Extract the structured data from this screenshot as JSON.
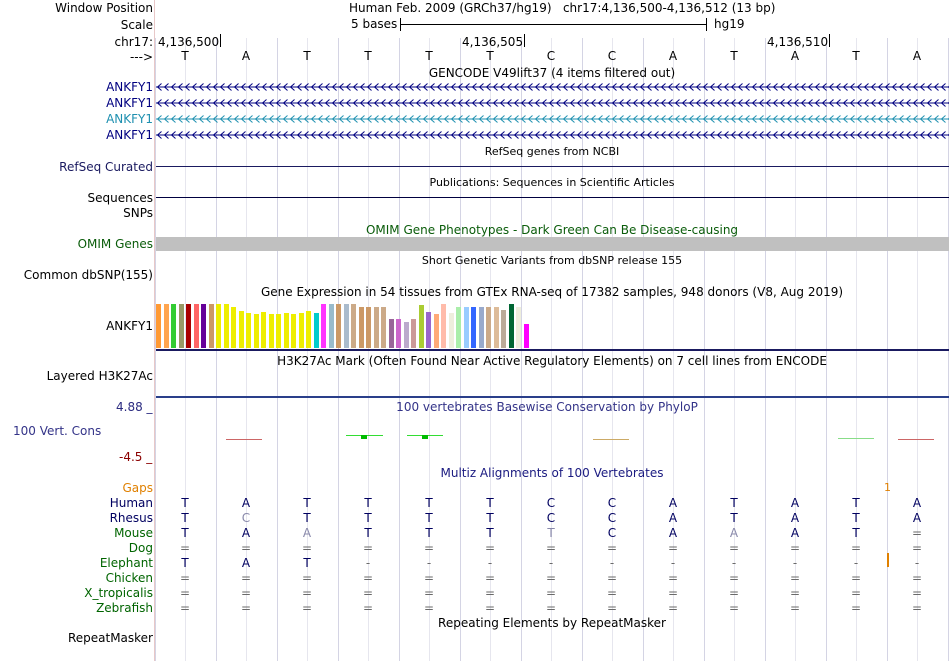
{
  "header": {
    "window_position_label": "Window Position",
    "window_position_value": "Human Feb. 2009 (GRCh37/hg19)   chr17:4,136,500-4,136,512 (13 bp)",
    "scale_label": "Scale",
    "scale_text": "5 bases",
    "scale_assembly": "hg19",
    "chrom_label": "chr17:",
    "positions": [
      {
        "text": "4,136,500",
        "x": 158
      },
      {
        "text": "4,136,505",
        "x": 462
      },
      {
        "text": "4,136,510",
        "x": 767
      }
    ],
    "strand_label": "--->"
  },
  "bases": [
    "T",
    "A",
    "T",
    "T",
    "T",
    "T",
    "C",
    "C",
    "A",
    "T",
    "A",
    "T",
    "A"
  ],
  "tracks": {
    "gencode": {
      "title": "GENCODE V49lift37 (4 items filtered out)",
      "items": [
        {
          "label": "ANKFY1",
          "color": "#000080"
        },
        {
          "label": "ANKFY1",
          "color": "#000080"
        },
        {
          "label": "ANKFY1",
          "color": "#1e90b0"
        },
        {
          "label": "ANKFY1",
          "color": "#000080"
        }
      ]
    },
    "refseq": {
      "title": "RefSeq genes from NCBI",
      "label": "RefSeq Curated"
    },
    "publications": {
      "title": "Publications: Sequences in Scientific Articles",
      "label": "Sequences"
    },
    "snps_label": "SNPs",
    "omim": {
      "title": "OMIM Gene Phenotypes - Dark Green Can Be Disease-causing",
      "label": "OMIM Genes",
      "color": "#0a5c0a"
    },
    "dbsnp": {
      "title": "Short Genetic Variants from dbSNP release 155",
      "label": "Common dbSNP(155)"
    },
    "gtex": {
      "title": "Gene Expression in 54 tissues from GTEx RNA-seq of 17382 samples, 948 donors (V8, Aug 2019)",
      "label": "ANKFY1",
      "bars": [
        {
          "v": 0.92,
          "c": "#ff9933"
        },
        {
          "v": 0.92,
          "c": "#ffa54f"
        },
        {
          "v": 0.92,
          "c": "#33cc33"
        },
        {
          "v": 0.92,
          "c": "#999966"
        },
        {
          "v": 0.92,
          "c": "#aa0000"
        },
        {
          "v": 0.92,
          "c": "#ff6666"
        },
        {
          "v": 0.92,
          "c": "#660099"
        },
        {
          "v": 0.92,
          "c": "#cc9966"
        },
        {
          "v": 0.92,
          "c": "#eeee00"
        },
        {
          "v": 0.92,
          "c": "#eeee00"
        },
        {
          "v": 0.85,
          "c": "#eeee00"
        },
        {
          "v": 0.78,
          "c": "#eeee00"
        },
        {
          "v": 0.72,
          "c": "#eeee00"
        },
        {
          "v": 0.7,
          "c": "#eeee00"
        },
        {
          "v": 0.75,
          "c": "#eeee00"
        },
        {
          "v": 0.7,
          "c": "#eeee00"
        },
        {
          "v": 0.7,
          "c": "#eeee00"
        },
        {
          "v": 0.72,
          "c": "#eeee00"
        },
        {
          "v": 0.7,
          "c": "#eeee00"
        },
        {
          "v": 0.72,
          "c": "#eeee00"
        },
        {
          "v": 0.78,
          "c": "#eeee00"
        },
        {
          "v": 0.72,
          "c": "#00cccc"
        },
        {
          "v": 0.92,
          "c": "#ff33ff"
        },
        {
          "v": 0.92,
          "c": "#99bbcc"
        },
        {
          "v": 0.92,
          "c": "#cc9966"
        },
        {
          "v": 0.92,
          "c": "#aabbcc"
        },
        {
          "v": 0.92,
          "c": "#ccaa88"
        },
        {
          "v": 0.85,
          "c": "#cc9966"
        },
        {
          "v": 0.85,
          "c": "#cc9966"
        },
        {
          "v": 0.85,
          "c": "#ccaa88"
        },
        {
          "v": 0.85,
          "c": "#ccaa88"
        },
        {
          "v": 0.6,
          "c": "#996699"
        },
        {
          "v": 0.6,
          "c": "#cc66cc"
        },
        {
          "v": 0.55,
          "c": "#bbaacc"
        },
        {
          "v": 0.6,
          "c": "#cc9999"
        },
        {
          "v": 0.9,
          "c": "#aacc33"
        },
        {
          "v": 0.75,
          "c": "#9966cc"
        },
        {
          "v": 0.7,
          "c": "#ffaa77"
        },
        {
          "v": 0.92,
          "c": "#ffbbaa"
        },
        {
          "v": 0.72,
          "c": "#eeeedd"
        },
        {
          "v": 0.85,
          "c": "#aaeeaa"
        },
        {
          "v": 0.85,
          "c": "#99ccff"
        },
        {
          "v": 0.85,
          "c": "#3366ff"
        },
        {
          "v": 0.85,
          "c": "#99aacc"
        },
        {
          "v": 0.85,
          "c": "#ccaa88"
        },
        {
          "v": 0.85,
          "c": "#ddbb99"
        },
        {
          "v": 0.8,
          "c": "#bbaa99"
        },
        {
          "v": 0.92,
          "c": "#006633"
        },
        {
          "v": 0.85,
          "c": "#eeeedd"
        },
        {
          "v": 0.5,
          "c": "#ff00ff"
        }
      ]
    },
    "h3k27ac": {
      "title": "H3K27Ac Mark (Often Found Near Active Regulatory Elements) on 7 cell lines from ENCODE",
      "label": "Layered H3K27Ac"
    },
    "phylop": {
      "title": "100 vertebrates Basewise Conservation by PhyloP",
      "label": "100 Vert. Cons",
      "max": "4.88 _",
      "min": "-4.5 _",
      "title_color": "#333388",
      "max_color": "#2a2a80",
      "min_color": "#8b0000"
    },
    "multiz": {
      "title": "Multiz Alignments of 100 Vertebrates",
      "title_color": "#1a1a80",
      "gaps_label": "Gaps",
      "gaps_color": "#e08000",
      "gap_mark": "1",
      "species": [
        {
          "name": "Human",
          "color": "#000060",
          "row": [
            "T",
            "A",
            "T",
            "T",
            "T",
            "T",
            "C",
            "C",
            "A",
            "T",
            "A",
            "T",
            "A"
          ],
          "faint": []
        },
        {
          "name": "Rhesus",
          "color": "#000060",
          "row": [
            "T",
            "C",
            "T",
            "T",
            "T",
            "T",
            "C",
            "C",
            "A",
            "T",
            "A",
            "T",
            "A"
          ],
          "faint": [
            1
          ]
        },
        {
          "name": "Mouse",
          "color": "#006400",
          "row": [
            "T",
            "A",
            "A",
            "T",
            "T",
            "T",
            "T",
            "C",
            "A",
            "A",
            "A",
            "T",
            "="
          ],
          "faint": [
            2,
            6,
            9
          ]
        },
        {
          "name": "Dog",
          "color": "#006400",
          "row": [
            "=",
            "=",
            "=",
            "=",
            "=",
            "=",
            "=",
            "=",
            "=",
            "=",
            "=",
            "=",
            "="
          ],
          "faint": []
        },
        {
          "name": "Elephant",
          "color": "#006400",
          "row": [
            "T",
            "A",
            "T",
            "-",
            "-",
            "-",
            "-",
            "-",
            "-",
            "-",
            "-",
            "-",
            "-"
          ],
          "faint": []
        },
        {
          "name": "Chicken",
          "color": "#006400",
          "row": [
            "=",
            "=",
            "=",
            "=",
            "=",
            "=",
            "=",
            "=",
            "=",
            "=",
            "=",
            "=",
            "="
          ],
          "faint": []
        },
        {
          "name": "X_tropicalis",
          "color": "#006400",
          "row": [
            "=",
            "=",
            "=",
            "=",
            "=",
            "=",
            "=",
            "=",
            "=",
            "=",
            "=",
            "=",
            "="
          ],
          "faint": []
        },
        {
          "name": "Zebrafish",
          "color": "#006400",
          "row": [
            "=",
            "=",
            "=",
            "=",
            "=",
            "=",
            "=",
            "=",
            "=",
            "=",
            "=",
            "=",
            "="
          ],
          "faint": []
        }
      ]
    },
    "repeatmasker": {
      "title": "Repeating Elements by RepeatMasker",
      "label": "RepeatMasker"
    }
  }
}
